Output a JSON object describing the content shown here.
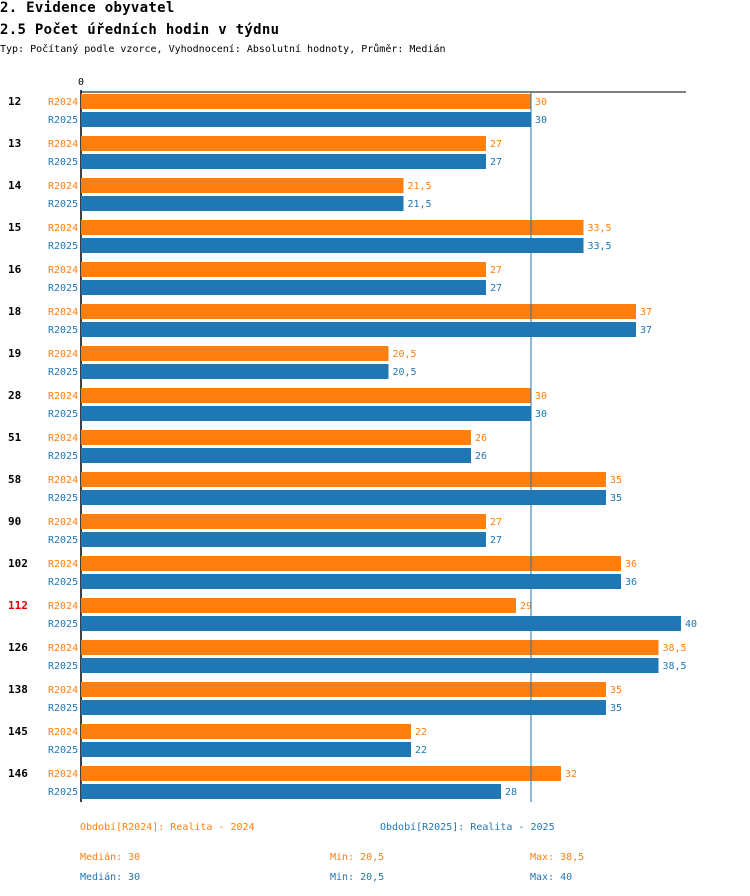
{
  "header": {
    "section": "2. Evidence obyvatel",
    "title": "2.5 Počet úředních hodin v týdnu",
    "subtitle": "Typ: Počítaný podle vzorce, Vyhodnocení: Absolutní hodnoty, Průměr: Medián"
  },
  "colors": {
    "r2024": "#ff7f0e",
    "r2025": "#1f77b4",
    "highlight": "#e00000"
  },
  "chart_data": {
    "type": "bar",
    "orientation": "horizontal",
    "x_axis_label": "0",
    "xlim": [
      0,
      40
    ],
    "reference_line": 30,
    "categories": [
      "12",
      "13",
      "14",
      "15",
      "16",
      "18",
      "19",
      "28",
      "51",
      "58",
      "90",
      "102",
      "112",
      "126",
      "138",
      "145",
      "146"
    ],
    "highlighted_category": "112",
    "series": [
      {
        "name": "R2024",
        "values": [
          30,
          27,
          21.5,
          33.5,
          27,
          37,
          20.5,
          30,
          26,
          35,
          27,
          36,
          29,
          38.5,
          35,
          22,
          32
        ],
        "labels": [
          "30",
          "27",
          "21,5",
          "33,5",
          "27",
          "37",
          "20,5",
          "30",
          "26",
          "35",
          "27",
          "36",
          "29",
          "38,5",
          "35",
          "22",
          "32"
        ]
      },
      {
        "name": "R2025",
        "values": [
          30,
          27,
          21.5,
          33.5,
          27,
          37,
          20.5,
          30,
          26,
          35,
          27,
          36,
          40,
          38.5,
          35,
          22,
          28
        ],
        "labels": [
          "30",
          "27",
          "21,5",
          "33,5",
          "27",
          "37",
          "20,5",
          "30",
          "26",
          "35",
          "27",
          "36",
          "40",
          "38,5",
          "35",
          "22",
          "28"
        ]
      }
    ]
  },
  "legend": {
    "r2024": "Období[R2024]: Realita - 2024",
    "r2025": "Období[R2025]: Realita - 2025"
  },
  "stats": {
    "r2024": {
      "median": "Medián: 30",
      "min": "Min: 20,5",
      "max": "Max: 38,5"
    },
    "r2025": {
      "median": "Medián: 30",
      "min": "Min: 20,5",
      "max": "Max: 40"
    }
  }
}
